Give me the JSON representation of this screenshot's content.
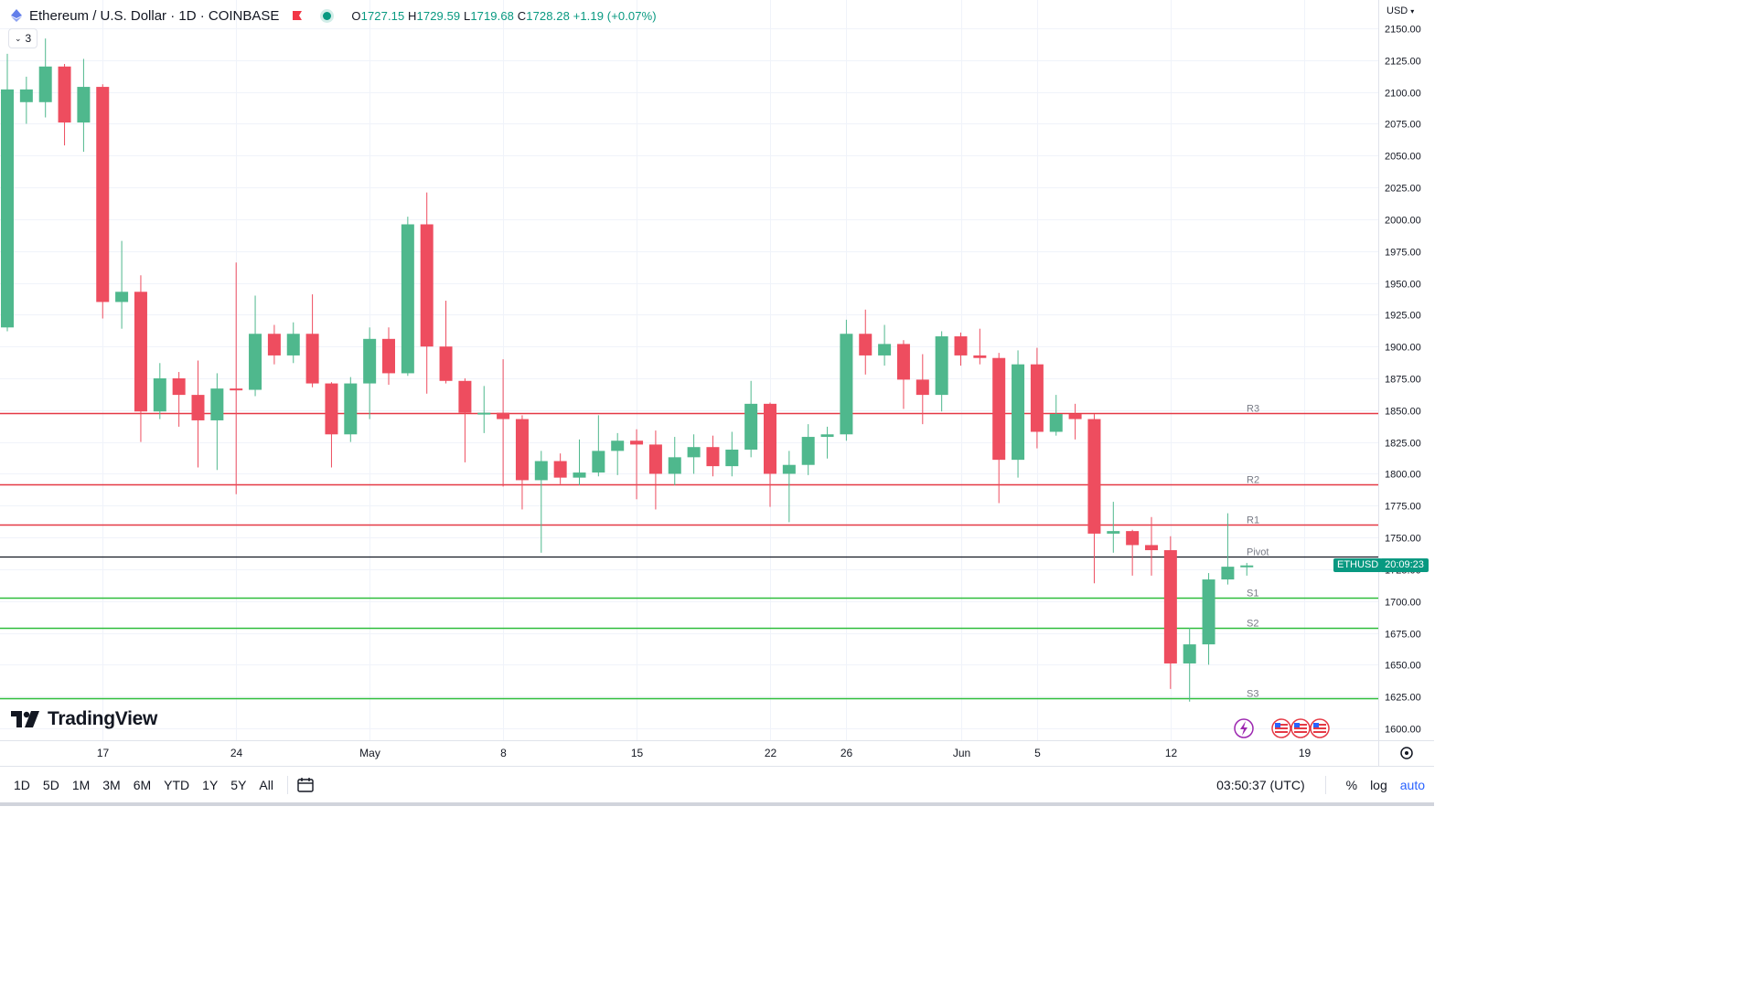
{
  "header": {
    "title": "Ethereum / U.S. Dollar · 1D · COINBASE",
    "ohlc": {
      "o_label": "O",
      "o": "1727.15",
      "h_label": "H",
      "h": "1729.59",
      "l_label": "L",
      "l": "1719.68",
      "c_label": "C",
      "c": "1728.28",
      "change": "+1.19 (+0.07%)"
    },
    "indicator_count": "3"
  },
  "price_axis": {
    "currency": "USD"
  },
  "badge": {
    "ticker": "ETHUSD",
    "countdown": "20:09:23"
  },
  "logo": {
    "text": "TradingView"
  },
  "bottom": {
    "ranges": [
      "1D",
      "5D",
      "1M",
      "3M",
      "6M",
      "YTD",
      "1Y",
      "5Y",
      "All"
    ],
    "time": "03:50:37 (UTC)",
    "percent": "%",
    "log": "log",
    "auto": "auto"
  },
  "colors": {
    "up": "#4fb88d",
    "down": "#ee4d5f",
    "resistance": "#e53945",
    "support": "#2ebd3b",
    "pivot": "#131722"
  },
  "chart_data": {
    "type": "candlestick",
    "ylim": [
      1600,
      2150
    ],
    "y_ticks": [
      1600,
      1625,
      1650,
      1675,
      1700,
      1725,
      1750,
      1775,
      1800,
      1825,
      1850,
      1875,
      1900,
      1925,
      1950,
      1975,
      2000,
      2025,
      2050,
      2075,
      2100,
      2125,
      2150
    ],
    "x_ticks": [
      {
        "label": "17",
        "date": "2023-04-17"
      },
      {
        "label": "24",
        "date": "2023-04-24"
      },
      {
        "label": "May",
        "date": "2023-05-01"
      },
      {
        "label": "8",
        "date": "2023-05-08"
      },
      {
        "label": "15",
        "date": "2023-05-15"
      },
      {
        "label": "22",
        "date": "2023-05-22"
      },
      {
        "label": "26",
        "date": "2023-05-26"
      },
      {
        "label": "Jun",
        "date": "2023-06-01"
      },
      {
        "label": "5",
        "date": "2023-06-05"
      },
      {
        "label": "12",
        "date": "2023-06-12"
      },
      {
        "label": "19",
        "date": "2023-06-19"
      }
    ],
    "levels": [
      {
        "name": "R3",
        "value": 1848,
        "kind": "resistance"
      },
      {
        "name": "R2",
        "value": 1792,
        "kind": "resistance"
      },
      {
        "name": "R1",
        "value": 1760,
        "kind": "resistance"
      },
      {
        "name": "Pivot",
        "value": 1735,
        "kind": "pivot"
      },
      {
        "name": "S1",
        "value": 1703,
        "kind": "support"
      },
      {
        "name": "S2",
        "value": 1679,
        "kind": "support"
      },
      {
        "name": "S3",
        "value": 1624,
        "kind": "support"
      }
    ],
    "candles": [
      {
        "date": "2023-04-12",
        "o": 1915,
        "h": 2130,
        "l": 1912,
        "c": 2102
      },
      {
        "date": "2023-04-13",
        "o": 2092,
        "h": 2112,
        "l": 2075,
        "c": 2102
      },
      {
        "date": "2023-04-14",
        "o": 2092,
        "h": 2142,
        "l": 2080,
        "c": 2120
      },
      {
        "date": "2023-04-15",
        "o": 2120,
        "h": 2122,
        "l": 2058,
        "c": 2076
      },
      {
        "date": "2023-04-16",
        "o": 2076,
        "h": 2126,
        "l": 2053,
        "c": 2104
      },
      {
        "date": "2023-04-17",
        "o": 2104,
        "h": 2106,
        "l": 1922,
        "c": 1935
      },
      {
        "date": "2023-04-18",
        "o": 1935,
        "h": 1983,
        "l": 1914,
        "c": 1943
      },
      {
        "date": "2023-04-19",
        "o": 1943,
        "h": 1956,
        "l": 1825,
        "c": 1849
      },
      {
        "date": "2023-04-20",
        "o": 1849,
        "h": 1887,
        "l": 1843,
        "c": 1875
      },
      {
        "date": "2023-04-21",
        "o": 1875,
        "h": 1880,
        "l": 1837,
        "c": 1862
      },
      {
        "date": "2023-04-22",
        "o": 1862,
        "h": 1889,
        "l": 1805,
        "c": 1842
      },
      {
        "date": "2023-04-23",
        "o": 1842,
        "h": 1879,
        "l": 1803,
        "c": 1867
      },
      {
        "date": "2023-04-24",
        "o": 1867,
        "h": 1966,
        "l": 1784,
        "c": 1866
      },
      {
        "date": "2023-04-25",
        "o": 1866,
        "h": 1940,
        "l": 1861,
        "c": 1910
      },
      {
        "date": "2023-04-26",
        "o": 1910,
        "h": 1917,
        "l": 1886,
        "c": 1893
      },
      {
        "date": "2023-04-27",
        "o": 1893,
        "h": 1919,
        "l": 1887,
        "c": 1910
      },
      {
        "date": "2023-04-28",
        "o": 1910,
        "h": 1941,
        "l": 1868,
        "c": 1871
      },
      {
        "date": "2023-04-29",
        "o": 1871,
        "h": 1872,
        "l": 1805,
        "c": 1831
      },
      {
        "date": "2023-04-30",
        "o": 1831,
        "h": 1876,
        "l": 1825,
        "c": 1871
      },
      {
        "date": "2023-05-01",
        "o": 1871,
        "h": 1915,
        "l": 1843,
        "c": 1906
      },
      {
        "date": "2023-05-02",
        "o": 1906,
        "h": 1915,
        "l": 1870,
        "c": 1879
      },
      {
        "date": "2023-05-03",
        "o": 1879,
        "h": 2002,
        "l": 1877,
        "c": 1996
      },
      {
        "date": "2023-05-04",
        "o": 1996,
        "h": 2021,
        "l": 1863,
        "c": 1900
      },
      {
        "date": "2023-05-05",
        "o": 1900,
        "h": 1936,
        "l": 1871,
        "c": 1873
      },
      {
        "date": "2023-05-06",
        "o": 1873,
        "h": 1875,
        "l": 1809,
        "c": 1848
      },
      {
        "date": "2023-05-07",
        "o": 1848,
        "h": 1869,
        "l": 1832,
        "c": 1848
      },
      {
        "date": "2023-05-08",
        "o": 1848,
        "h": 1890,
        "l": 1790,
        "c": 1843
      },
      {
        "date": "2023-05-09",
        "o": 1843,
        "h": 1846,
        "l": 1772,
        "c": 1795
      },
      {
        "date": "2023-05-10",
        "o": 1795,
        "h": 1818,
        "l": 1738,
        "c": 1810
      },
      {
        "date": "2023-05-11",
        "o": 1810,
        "h": 1816,
        "l": 1792,
        "c": 1797
      },
      {
        "date": "2023-05-12",
        "o": 1797,
        "h": 1827,
        "l": 1791,
        "c": 1801
      },
      {
        "date": "2023-05-13",
        "o": 1801,
        "h": 1846,
        "l": 1798,
        "c": 1818
      },
      {
        "date": "2023-05-14",
        "o": 1818,
        "h": 1832,
        "l": 1799,
        "c": 1826
      },
      {
        "date": "2023-05-15",
        "o": 1826,
        "h": 1835,
        "l": 1780,
        "c": 1823
      },
      {
        "date": "2023-05-16",
        "o": 1823,
        "h": 1834,
        "l": 1772,
        "c": 1800
      },
      {
        "date": "2023-05-17",
        "o": 1800,
        "h": 1829,
        "l": 1791,
        "c": 1813
      },
      {
        "date": "2023-05-18",
        "o": 1813,
        "h": 1831,
        "l": 1800,
        "c": 1821
      },
      {
        "date": "2023-05-19",
        "o": 1821,
        "h": 1830,
        "l": 1798,
        "c": 1806
      },
      {
        "date": "2023-05-20",
        "o": 1806,
        "h": 1833,
        "l": 1798,
        "c": 1819
      },
      {
        "date": "2023-05-21",
        "o": 1819,
        "h": 1873,
        "l": 1813,
        "c": 1855
      },
      {
        "date": "2023-05-22",
        "o": 1855,
        "h": 1856,
        "l": 1774,
        "c": 1800
      },
      {
        "date": "2023-05-23",
        "o": 1800,
        "h": 1818,
        "l": 1762,
        "c": 1807
      },
      {
        "date": "2023-05-24",
        "o": 1807,
        "h": 1839,
        "l": 1799,
        "c": 1829
      },
      {
        "date": "2023-05-25",
        "o": 1829,
        "h": 1837,
        "l": 1812,
        "c": 1831
      },
      {
        "date": "2023-05-26",
        "o": 1831,
        "h": 1921,
        "l": 1826,
        "c": 1910
      },
      {
        "date": "2023-05-27",
        "o": 1910,
        "h": 1929,
        "l": 1878,
        "c": 1893
      },
      {
        "date": "2023-05-28",
        "o": 1893,
        "h": 1917,
        "l": 1885,
        "c": 1902
      },
      {
        "date": "2023-05-29",
        "o": 1902,
        "h": 1905,
        "l": 1851,
        "c": 1874
      },
      {
        "date": "2023-05-30",
        "o": 1874,
        "h": 1894,
        "l": 1839,
        "c": 1862
      },
      {
        "date": "2023-05-31",
        "o": 1862,
        "h": 1912,
        "l": 1849,
        "c": 1908
      },
      {
        "date": "2023-06-01",
        "o": 1908,
        "h": 1911,
        "l": 1885,
        "c": 1893
      },
      {
        "date": "2023-06-02",
        "o": 1893,
        "h": 1914,
        "l": 1886,
        "c": 1891
      },
      {
        "date": "2023-06-03",
        "o": 1891,
        "h": 1895,
        "l": 1777,
        "c": 1811
      },
      {
        "date": "2023-06-04",
        "o": 1811,
        "h": 1897,
        "l": 1797,
        "c": 1886
      },
      {
        "date": "2023-06-05",
        "o": 1886,
        "h": 1899,
        "l": 1820,
        "c": 1833
      },
      {
        "date": "2023-06-06",
        "o": 1833,
        "h": 1862,
        "l": 1830,
        "c": 1847
      },
      {
        "date": "2023-06-07",
        "o": 1847,
        "h": 1855,
        "l": 1827,
        "c": 1843
      },
      {
        "date": "2023-06-08",
        "o": 1843,
        "h": 1847,
        "l": 1714,
        "c": 1753
      },
      {
        "date": "2023-06-09",
        "o": 1753,
        "h": 1778,
        "l": 1738,
        "c": 1755
      },
      {
        "date": "2023-06-10",
        "o": 1755,
        "h": 1756,
        "l": 1720,
        "c": 1744
      },
      {
        "date": "2023-06-11",
        "o": 1744,
        "h": 1766,
        "l": 1720,
        "c": 1740
      },
      {
        "date": "2023-06-12",
        "o": 1740,
        "h": 1751,
        "l": 1631,
        "c": 1651
      },
      {
        "date": "2023-06-13",
        "o": 1651,
        "h": 1679,
        "l": 1621,
        "c": 1666
      },
      {
        "date": "2023-06-14",
        "o": 1666,
        "h": 1722,
        "l": 1650,
        "c": 1717
      },
      {
        "date": "2023-06-15",
        "o": 1717,
        "h": 1769,
        "l": 1713,
        "c": 1727
      },
      {
        "date": "2023-06-16",
        "o": 1727,
        "h": 1730,
        "l": 1720,
        "c": 1728
      }
    ]
  }
}
